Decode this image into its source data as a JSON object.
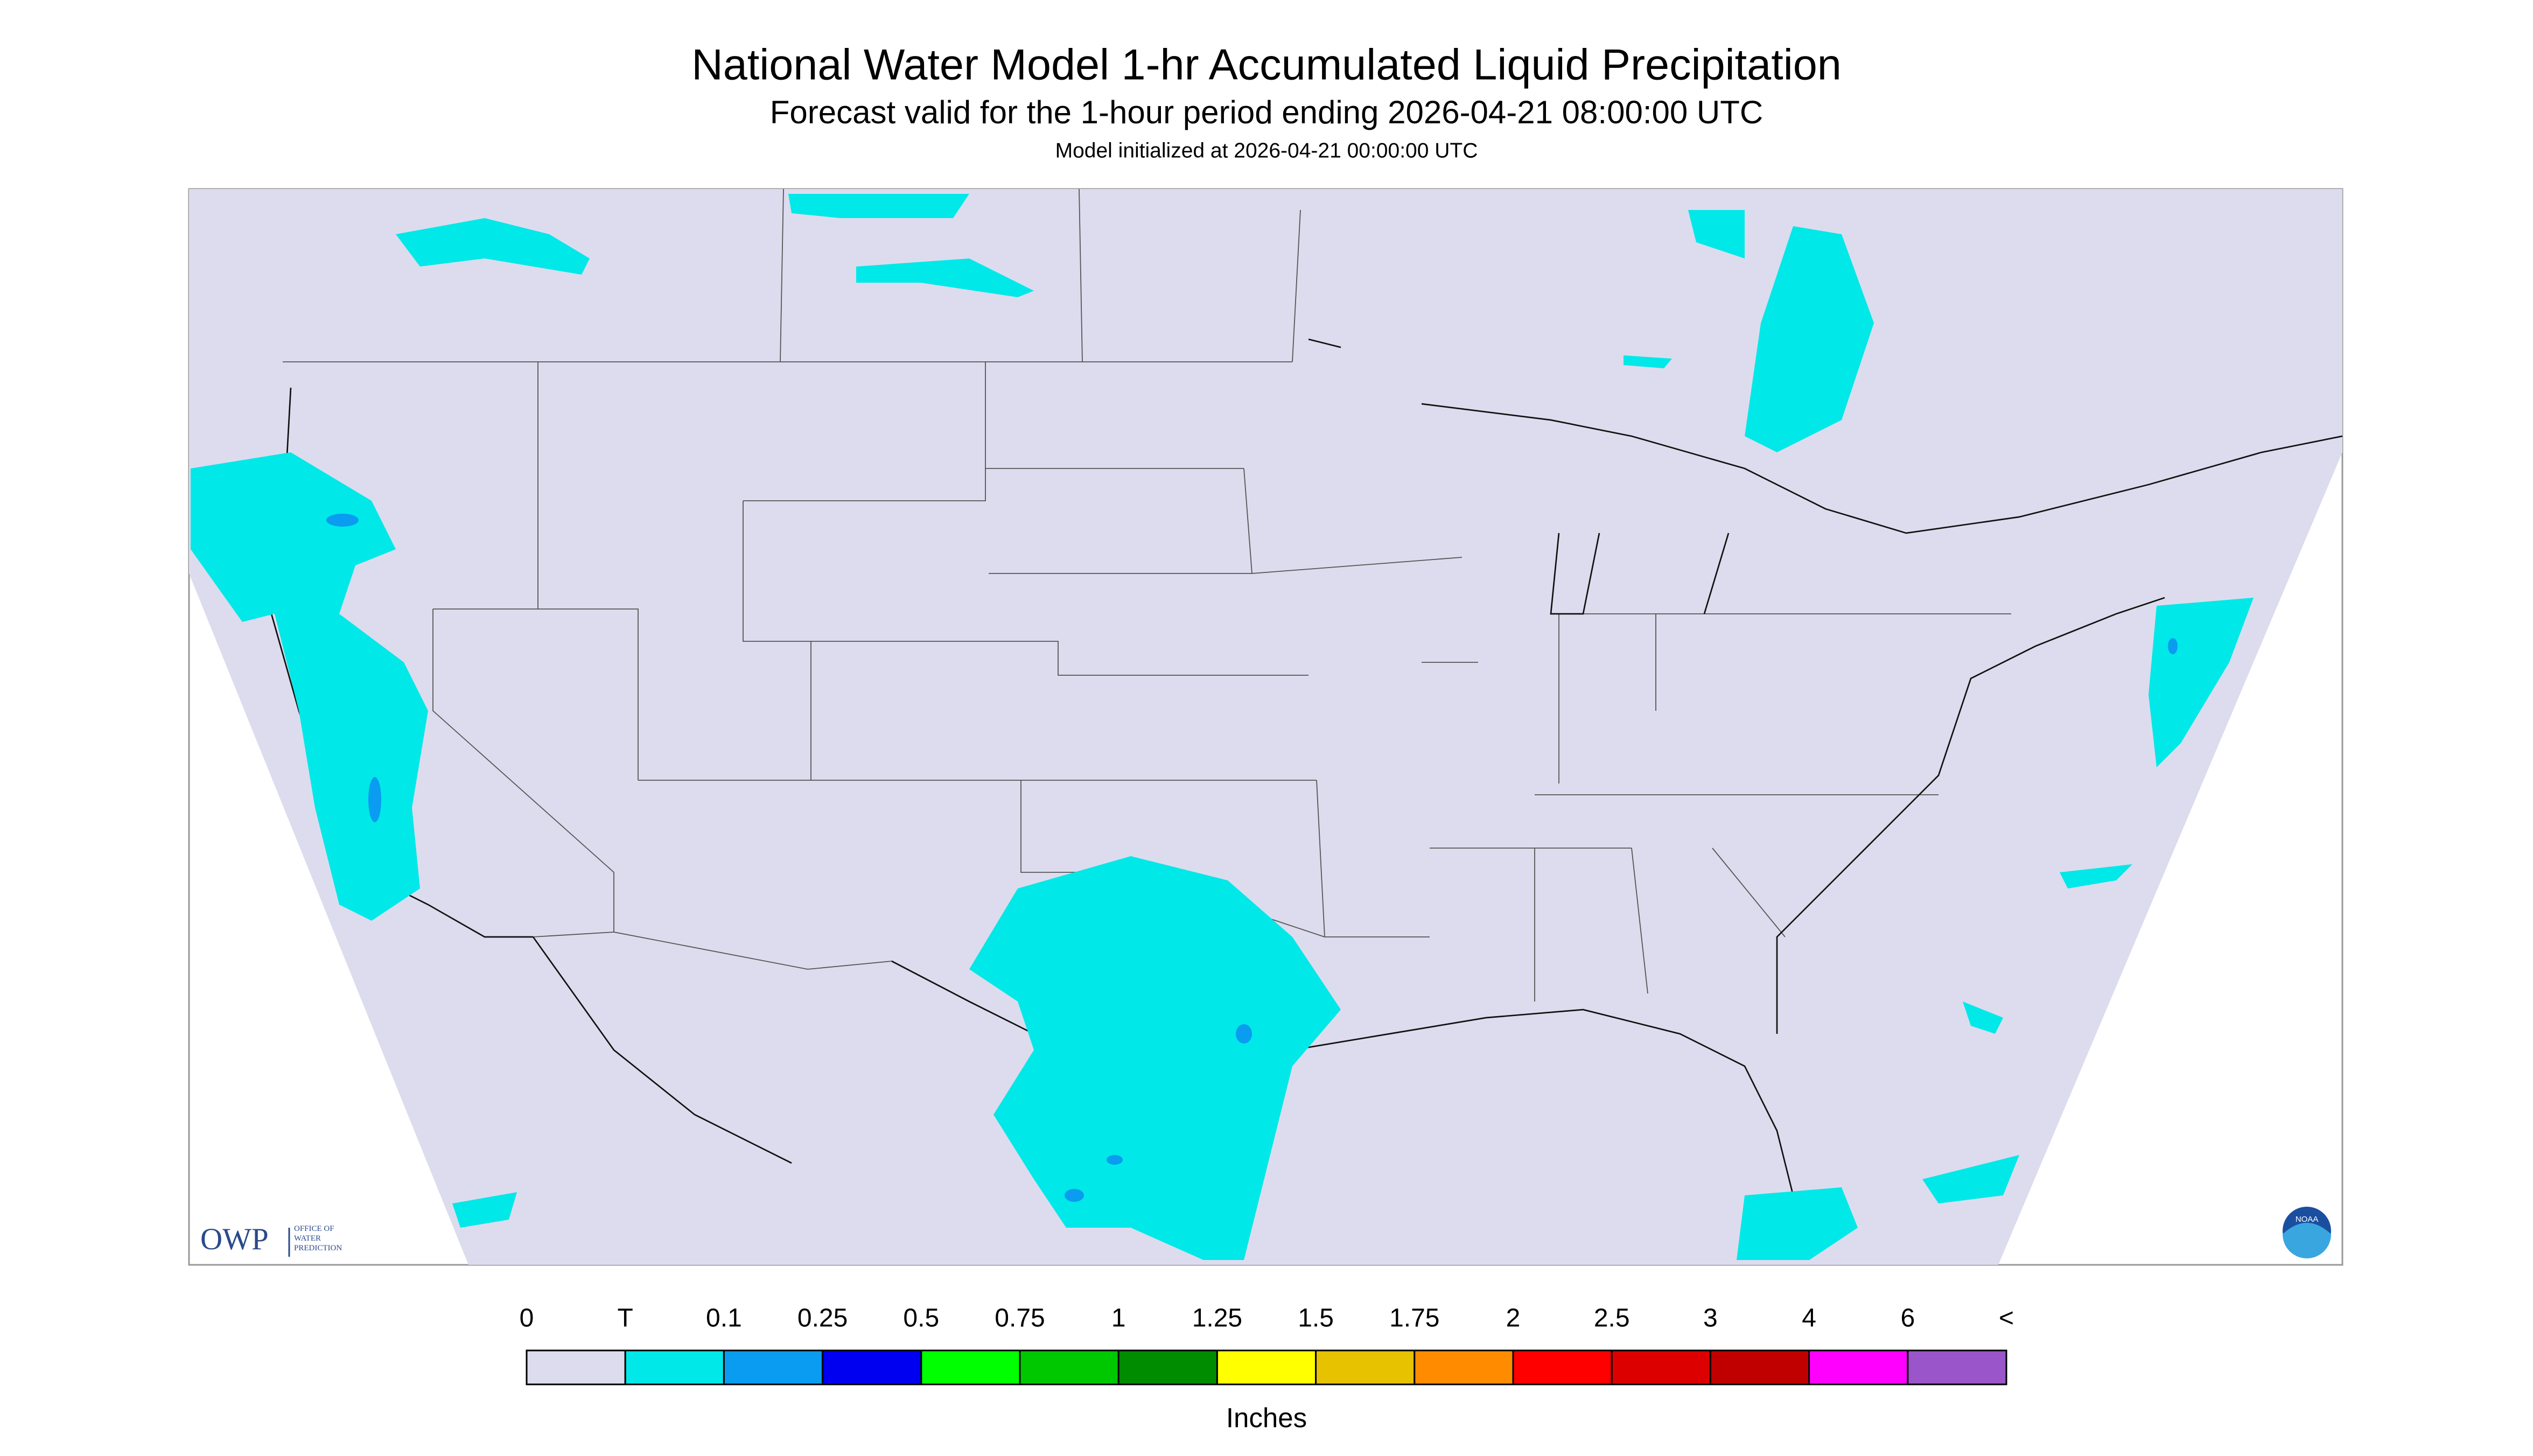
{
  "header": {
    "title": "National Water Model 1-hr Accumulated Liquid Precipitation",
    "subtitle": "Forecast valid for the 1-hour period ending 2026-04-21 08:00:00 UTC",
    "note": "Model initialized at 2026-04-21 00:00:00 UTC"
  },
  "logos": {
    "owp": "OWP",
    "owp_text": [
      "OFFICE OF",
      "WATER",
      "PREDICTION"
    ],
    "noaa": "NOAA"
  },
  "legend": {
    "labels": [
      "0",
      "T",
      "0.1",
      "0.25",
      "0.5",
      "0.75",
      "1",
      "1.25",
      "1.5",
      "1.75",
      "2",
      "2.5",
      "3",
      "4",
      "6",
      "<"
    ],
    "colors": [
      "#dcdcee",
      "#00e8e8",
      "#0a9cf0",
      "#0000f0",
      "#00ff00",
      "#00c800",
      "#008c00",
      "#ffff00",
      "#e6c200",
      "#ff8c00",
      "#ff0000",
      "#dc0000",
      "#c00000",
      "#ff00ff",
      "#9955c9"
    ],
    "unit": "Inches"
  }
}
